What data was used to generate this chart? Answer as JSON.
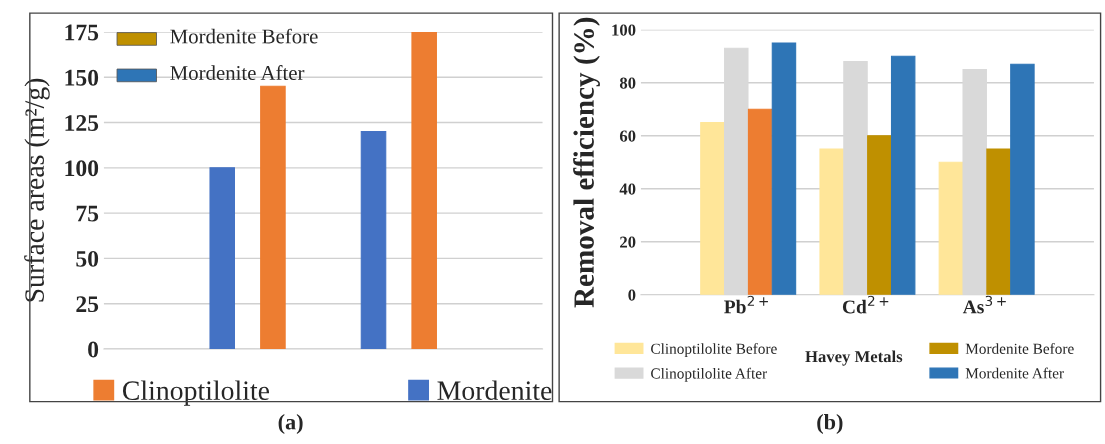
{
  "chart_data": [
    {
      "type": "bar",
      "ylabel": "Surface areas (m²/g)",
      "categories": [
        null,
        null
      ],
      "series": [
        {
          "name": "Mordenite",
          "color": "#4472c4",
          "values": [
            100,
            120
          ]
        },
        {
          "name": "Clinoptilolite",
          "color": "#ed7d31",
          "values": [
            145,
            175
          ]
        }
      ],
      "ylim": [
        0,
        175
      ],
      "yticks": [
        0,
        25,
        50,
        75,
        100,
        125,
        150,
        175
      ],
      "grid": "y",
      "legend": "bottom",
      "annotations": [
        "Mordenite Before",
        "Mordenite After",
        "(a)"
      ]
    },
    {
      "type": "bar",
      "ylabel": "Removal efficiency (%)",
      "xlabel": "Havey Metals",
      "categories": [
        "Pb$^{2+}$",
        "Cd$^{2+}$",
        "As$^{3+}$"
      ],
      "series": [
        {
          "name": "Clinoptilolite Before",
          "color": "#ffe699",
          "values": [
            65,
            55,
            50
          ]
        },
        {
          "name": "Clinoptilolite After",
          "color": "#d9d9d9",
          "values": [
            93,
            88,
            85
          ]
        },
        {
          "name": "Mordenite Before",
          "color": "#bf9000",
          "colors": [
            "#ed7d31",
            "#bf9000",
            "#bf9000"
          ],
          "values": [
            70,
            60,
            55
          ]
        },
        {
          "name": "Mordenite After",
          "color": "#2e75b6",
          "values": [
            95,
            90,
            87
          ]
        }
      ],
      "ylim": [
        0,
        100
      ],
      "yticks": [
        0,
        20,
        40,
        60,
        80,
        100
      ],
      "grid": "y",
      "legend": "bottom",
      "annotations": [
        "(b)"
      ]
    }
  ]
}
